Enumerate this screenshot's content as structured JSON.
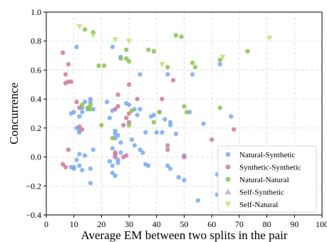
{
  "chart_data": {
    "type": "scatter",
    "title": "",
    "xlabel": "Average EM between two splits in the pair",
    "ylabel": "Concurrence",
    "xlim": [
      0,
      100
    ],
    "ylim": [
      -0.4,
      1.0
    ],
    "xticks": [
      0,
      10,
      20,
      30,
      40,
      50,
      60,
      70,
      80,
      90,
      100
    ],
    "yticks": [
      -0.4,
      -0.2,
      0.0,
      0.2,
      0.4,
      0.6,
      0.8,
      1.0
    ],
    "xtick_labels": [
      "0",
      "10",
      "20",
      "30",
      "40",
      "50",
      "60",
      "70",
      "80",
      "90",
      "100"
    ],
    "ytick_labels": [
      "−0.4",
      "−0.2",
      "0.0",
      "0.2",
      "0.4",
      "0.6",
      "0.8",
      "1.0"
    ],
    "grid": true,
    "legend_position": "lower-right",
    "series": [
      {
        "name": "Natural-Synthetic",
        "color": "#7aaaf0",
        "marker": "circle",
        "points": [
          [
            9,
            0.3
          ],
          [
            10,
            0.31
          ],
          [
            12,
            0.28
          ],
          [
            13,
            0.34
          ],
          [
            13,
            0.31
          ],
          [
            14,
            0.38
          ],
          [
            15,
            0.33
          ],
          [
            16,
            0.38
          ],
          [
            16,
            0.4
          ],
          [
            17,
            0.33
          ],
          [
            11,
            0.2
          ],
          [
            12,
            0.18
          ],
          [
            12,
            0.17
          ],
          [
            10,
            -0.07
          ],
          [
            11,
            -0.02
          ],
          [
            12,
            -0.06
          ],
          [
            12,
            0.02
          ],
          [
            14,
            0.01
          ],
          [
            9,
            -0.07
          ],
          [
            10,
            -0.08
          ],
          [
            13,
            -0.09
          ],
          [
            16,
            -0.08
          ],
          [
            16,
            -0.18
          ],
          [
            17,
            0.05
          ],
          [
            11,
            0.76
          ],
          [
            22,
            0.38
          ],
          [
            23,
            0.27
          ],
          [
            24,
            0.32
          ],
          [
            25,
            0.18
          ],
          [
            25,
            0.13
          ],
          [
            25,
            0.16
          ],
          [
            26,
            0.15
          ],
          [
            27,
            0.1
          ],
          [
            24,
            0.06
          ],
          [
            23,
            -0.03
          ],
          [
            24,
            -0.06
          ],
          [
            24,
            -0.11
          ],
          [
            25,
            -0.13
          ],
          [
            26,
            -0.04
          ],
          [
            26,
            -0.02
          ],
          [
            27,
            0.03
          ],
          [
            27,
            0.69
          ],
          [
            24,
            0.76
          ],
          [
            29,
            0.37
          ],
          [
            30,
            0.36
          ],
          [
            32,
            0.33
          ],
          [
            33,
            0.29
          ],
          [
            34,
            0.33
          ],
          [
            36,
            0.17
          ],
          [
            34,
            0.57
          ],
          [
            31,
            0.12
          ],
          [
            32,
            0.08
          ],
          [
            34,
            0.05
          ],
          [
            35,
            0.03
          ],
          [
            36,
            -0.05
          ],
          [
            37,
            -0.06
          ],
          [
            38,
            0.28
          ],
          [
            39,
            0.29
          ],
          [
            40,
            0.17
          ],
          [
            42,
            0.17
          ],
          [
            41,
            0.31
          ],
          [
            43,
            0.26
          ],
          [
            44,
            -0.06
          ],
          [
            45,
            -0.08
          ],
          [
            45,
            0.22
          ],
          [
            45,
            0.24
          ],
          [
            47,
            0.16
          ],
          [
            48,
            -0.14
          ],
          [
            50,
            -0.16
          ],
          [
            50,
            0.01
          ],
          [
            52,
            0.31
          ],
          [
            53,
            0.57
          ],
          [
            57,
            0.23
          ],
          [
            55,
            -0.3
          ],
          [
            62,
            -0.26
          ],
          [
            62,
            -0.12
          ],
          [
            63,
            0.64
          ],
          [
            66,
            0.06
          ],
          [
            66,
            -0.02
          ],
          [
            67,
            0.28
          ],
          [
            44,
            0.57
          ]
        ]
      },
      {
        "name": "Synthetic-Synthetic",
        "color": "#cc7b9c",
        "marker": "circle",
        "points": [
          [
            6,
            0.72
          ],
          [
            7,
            0.57
          ],
          [
            7,
            0.51
          ],
          [
            8,
            0.52
          ],
          [
            8,
            0.64
          ],
          [
            9,
            0.52
          ],
          [
            6,
            -0.05
          ],
          [
            7,
            -0.07
          ],
          [
            8,
            0.05
          ],
          [
            12,
            0.21
          ],
          [
            13,
            0.19
          ],
          [
            11,
            0.38
          ],
          [
            12,
            0.34
          ],
          [
            25,
            0.33
          ],
          [
            26,
            0.43
          ],
          [
            26,
            0.35
          ],
          [
            28,
            0.22
          ],
          [
            29,
            0.27
          ],
          [
            30,
            0.3
          ],
          [
            30,
            0.24
          ],
          [
            30,
            0.5
          ],
          [
            29,
            0.01
          ],
          [
            28,
            0.0
          ],
          [
            25,
            0.03
          ],
          [
            25,
            0.02
          ],
          [
            25,
            0.0
          ],
          [
            33,
            0.4
          ],
          [
            42,
            0.4
          ],
          [
            44,
            0.08
          ],
          [
            44,
            0.05
          ],
          [
            46,
            0.53
          ],
          [
            50,
            0.0
          ],
          [
            68,
            0.19
          ],
          [
            60,
            0.12
          ]
        ]
      },
      {
        "name": "Natural-Natural",
        "color": "#8cc150",
        "marker": "circle",
        "points": [
          [
            14,
            0.88
          ],
          [
            17,
            0.86
          ],
          [
            15,
            0.34
          ],
          [
            16,
            0.36
          ],
          [
            16,
            0.33
          ],
          [
            19,
            0.63
          ],
          [
            21,
            0.63
          ],
          [
            20,
            0.22
          ],
          [
            24,
            0.13
          ],
          [
            27,
            0.68
          ],
          [
            29,
            0.68
          ],
          [
            29,
            0.74
          ],
          [
            30,
            0.66
          ],
          [
            30,
            0.22
          ],
          [
            31,
            0.32
          ],
          [
            37,
            0.74
          ],
          [
            39,
            0.73
          ],
          [
            39,
            0.24
          ],
          [
            41,
            0.31
          ],
          [
            44,
            0.62
          ],
          [
            47,
            0.84
          ],
          [
            49,
            0.83
          ],
          [
            50,
            0.35
          ],
          [
            51,
            0.31
          ],
          [
            53,
            0.65
          ],
          [
            54,
            0.62
          ],
          [
            63,
            0.67
          ],
          [
            63,
            0.34
          ],
          [
            73,
            0.73
          ],
          [
            13,
            0.36
          ]
        ]
      },
      {
        "name": "Self-Synthetic",
        "color": "#c9a3c8",
        "marker": "triangle-up",
        "points": []
      },
      {
        "name": "Self-Natural",
        "color": "#bde07a",
        "marker": "triangle-down",
        "points": [
          [
            12,
            0.9
          ],
          [
            17,
            0.84
          ],
          [
            25,
            0.81
          ],
          [
            30,
            0.8
          ],
          [
            42,
            0.64
          ],
          [
            64,
            0.69
          ],
          [
            81,
            0.82
          ]
        ]
      }
    ]
  }
}
